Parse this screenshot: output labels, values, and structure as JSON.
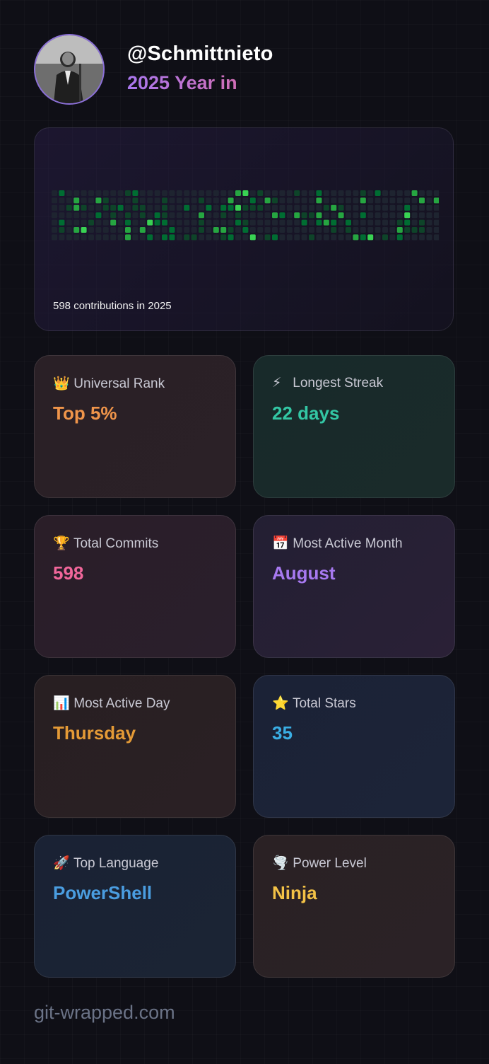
{
  "profile": {
    "username": "@Schmittnieto",
    "subtitle": "2025 Year in"
  },
  "contributions": {
    "summary": "598 contributions in 2025",
    "colors": {
      "empty": "#1e2430",
      "low": "#0e4429",
      "mid": "#006d32",
      "high": "#26a641",
      "max": "#39d353"
    }
  },
  "stats": {
    "universal_rank": {
      "icon": "👑",
      "label": "Universal Rank",
      "value": "Top 5%",
      "color": "#f0954a"
    },
    "longest_streak": {
      "icon": "⚡",
      "label": "Longest Streak",
      "value": "22 days",
      "color": "#33c6a4"
    },
    "total_commits": {
      "icon": "🏆",
      "label": "Total Commits",
      "value": "598",
      "color": "#f2679b"
    },
    "most_active_month": {
      "icon": "📅",
      "label": "Most Active Month",
      "value": "August",
      "color": "#a779f0"
    },
    "most_active_day": {
      "icon": "📊",
      "label": "Most Active Day",
      "value": "Thursday",
      "color": "#e49a36"
    },
    "total_stars": {
      "icon": "⭐",
      "label": "Total Stars",
      "value": "35",
      "color": "#3aaee4"
    },
    "top_language": {
      "icon": "🚀",
      "label": "Top Language",
      "value": "PowerShell",
      "color": "#4a9de0"
    },
    "power_level": {
      "icon": "🌪️",
      "label": "Power Level",
      "value": "Ninja",
      "color": "#f3c246"
    }
  },
  "footer": {
    "site": "git-wrapped.com"
  }
}
